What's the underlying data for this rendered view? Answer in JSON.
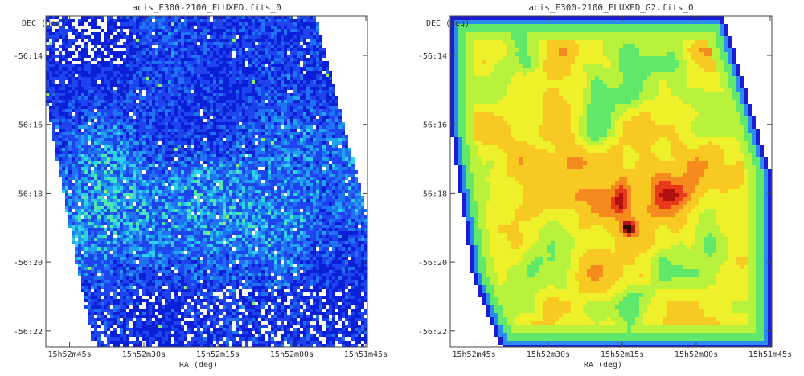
{
  "chart_data": [
    {
      "type": "heatmap",
      "title": "acis_E300-2100_FLUXED.fits_0",
      "xlabel": "RA (deg)",
      "ylabel": "DEC (deg)",
      "x_ticks": [
        "15h52m45s",
        "15h52m30s",
        "15h52m15s",
        "15h52m00s",
        "15h51m45s"
      ],
      "y_ticks": [
        "-56:14",
        "-56:16",
        "-56:18",
        "-56:20",
        "-56:22"
      ],
      "colormap": "noisy blue/cyan",
      "palette": [
        "#ffffff",
        "#0b1fd6",
        "#1d44ee",
        "#1f72f3",
        "#22a3f0",
        "#2fd2e6",
        "#4fe8b2",
        "#8ef06a"
      ]
    },
    {
      "type": "heatmap",
      "title": "acis_E300-2100_FLUXED_G2.fits_0",
      "xlabel": "RA (deg)",
      "ylabel": "DEC (deg)",
      "x_ticks": [
        "15h52m45s",
        "15h52m30s",
        "15h52m15s",
        "15h52m00s",
        "15h51m45s"
      ],
      "y_ticks": [
        "-56:14",
        "-56:16",
        "-56:18",
        "-56:20",
        "-56:22"
      ],
      "colormap": "smoothed rainbow",
      "palette": [
        "#ffffff",
        "#1c1cd6",
        "#2a8cf0",
        "#29d6e6",
        "#5fe86a",
        "#b8f23c",
        "#eef02a",
        "#f8c823",
        "#f58a1f",
        "#e8391a",
        "#b01010",
        "#2a0a0a"
      ]
    }
  ]
}
